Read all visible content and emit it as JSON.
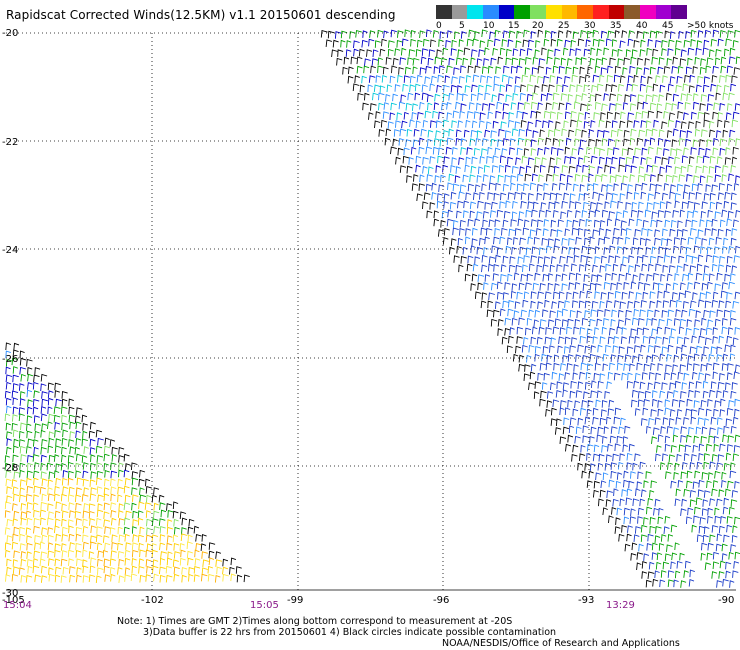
{
  "title": "Rapidscat Corrected Winds(12.5KM) v1.1 20150601 descending",
  "legend": {
    "colors": [
      "#333333",
      "#9a9a9a",
      "#00e5ee",
      "#2a8cff",
      "#0000c8",
      "#00a000",
      "#80e060",
      "#ffe000",
      "#ffb800",
      "#ff6600",
      "#ff2020",
      "#c00000",
      "#8b5a2b",
      "#f000c0",
      "#a000d0",
      "#600090"
    ],
    "labels": [
      "0",
      "5",
      "10",
      "15",
      "20",
      "25",
      "30",
      "35",
      "40",
      "45",
      ">50 knots"
    ]
  },
  "axes": {
    "y_labels": [
      "-20",
      "-22",
      "-24",
      "-26",
      "-28",
      "-30"
    ],
    "x_labels": [
      "-102",
      "-99",
      "-96",
      "-93",
      "-90"
    ],
    "corner_label": "-105"
  },
  "time_labels": [
    "15:04",
    "15:05",
    "13:29"
  ],
  "notes": {
    "line1": "Note: 1) Times are GMT 2)Times along bottom correspond to measurement at -20S",
    "line2": "3)Data buffer is 22 hrs from 20150601 4) Black circles indicate possible contamination",
    "credit": "NOAA/NESDIS/Office of Research and Applications"
  }
}
